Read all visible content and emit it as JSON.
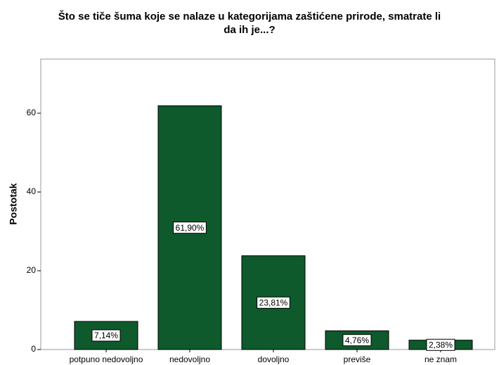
{
  "chart_data": {
    "type": "bar",
    "title": [
      "Što se tiče šuma koje se nalaze u kategorijama zaštićene prirode, smatrate li",
      "da ih je...?"
    ],
    "ylabel": "Postotak",
    "categories": [
      "potpuno nedovoljno",
      "nedovoljno",
      "dovoljno",
      "previše",
      "ne znam"
    ],
    "values": [
      7.14,
      61.9,
      23.81,
      4.76,
      2.38
    ],
    "value_labels": [
      "7,14%",
      "61,90%",
      "23,81%",
      "4,76%",
      "2,38%"
    ],
    "color": "#0e5a2c",
    "ylim": [
      0,
      73.75
    ],
    "yticks": [
      0,
      20,
      40,
      60
    ],
    "grid": false
  }
}
